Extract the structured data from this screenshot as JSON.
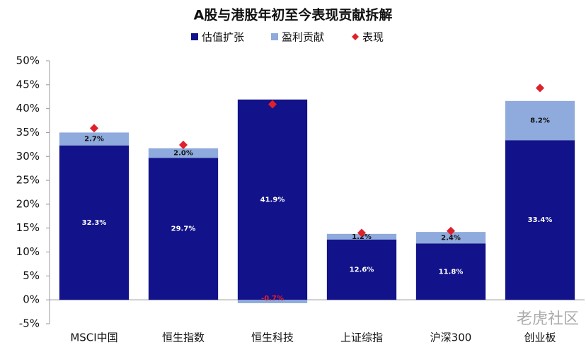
{
  "chart_data": {
    "type": "bar",
    "stacked": true,
    "title": "A股与港股年初至今表现贡献拆解",
    "watermark": "老虎社区",
    "categories": [
      "MSCI中国",
      "恒生指数",
      "恒生科技",
      "上证综指",
      "沪深300",
      "创业板"
    ],
    "series": [
      {
        "name": "估值扩张",
        "type": "bar",
        "color": "#12128a",
        "values": [
          32.3,
          29.7,
          41.9,
          12.6,
          11.8,
          33.4
        ],
        "value_labels": [
          "32.3%",
          "29.7%",
          "41.9%",
          "12.6%",
          "11.8%",
          "33.4%"
        ]
      },
      {
        "name": "盈利贡献",
        "type": "bar",
        "color": "#8faadc",
        "values": [
          2.7,
          2.0,
          -0.7,
          1.2,
          2.4,
          8.2
        ],
        "value_labels": [
          "2.7%",
          "2.0%",
          "-0.7%",
          "1.2%",
          "2.4%",
          "8.2%"
        ]
      },
      {
        "name": "表现",
        "type": "scatter",
        "color": "#e0202a",
        "values": [
          35.9,
          32.4,
          40.9,
          14.0,
          14.4,
          44.3
        ]
      }
    ],
    "ylim": [
      -5,
      50
    ],
    "yticks": [
      {
        "value": -5,
        "label": "-5%"
      },
      {
        "value": 0,
        "label": "0%"
      },
      {
        "value": 5,
        "label": "5%"
      },
      {
        "value": 10,
        "label": "10%"
      },
      {
        "value": 15,
        "label": "15%"
      },
      {
        "value": 20,
        "label": "20%"
      },
      {
        "value": 25,
        "label": "25%"
      },
      {
        "value": 30,
        "label": "30%"
      },
      {
        "value": 35,
        "label": "35%"
      },
      {
        "value": 40,
        "label": "40%"
      },
      {
        "value": 45,
        "label": "45%"
      },
      {
        "value": 50,
        "label": "50%"
      }
    ],
    "grid": false
  }
}
